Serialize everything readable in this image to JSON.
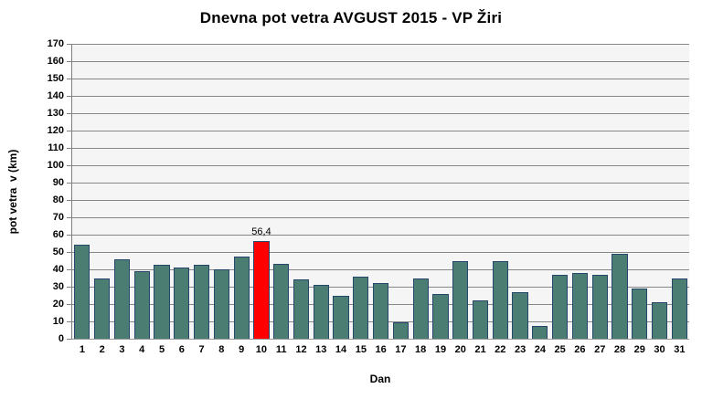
{
  "title": "Dnevna pot vetra AVGUST 2015 - VP Žiri",
  "chart_data": {
    "type": "bar",
    "title": "Dnevna pot vetra AVGUST 2015 - VP Žiri",
    "xlabel": "Dan",
    "ylabel": "pot vetra  v (km)",
    "ylim": [
      0,
      170
    ],
    "ytick_step": 10,
    "grid": true,
    "legend": false,
    "categories": [
      "1",
      "2",
      "3",
      "4",
      "5",
      "6",
      "7",
      "8",
      "9",
      "10",
      "11",
      "12",
      "13",
      "14",
      "15",
      "16",
      "17",
      "18",
      "19",
      "20",
      "21",
      "22",
      "23",
      "24",
      "25",
      "26",
      "27",
      "28",
      "29",
      "30",
      "31"
    ],
    "values": [
      54,
      35,
      46,
      39,
      42.5,
      41,
      42.5,
      40,
      47.5,
      56.4,
      43,
      34,
      31,
      25,
      36,
      32,
      9.5,
      35,
      26,
      44.5,
      22,
      44.5,
      27,
      7.5,
      37,
      38,
      37,
      49,
      29,
      21,
      35
    ],
    "highlight": {
      "category": "10",
      "index": 9,
      "data_label": "56,4"
    },
    "colors": {
      "bar_fill": "#4c7d73",
      "bar_border": "#24476b",
      "highlight_fill": "#ff0000",
      "plot_background": "#f5f5f5",
      "gridline": "#878787",
      "axis_line": "#808080",
      "text": "#000000"
    }
  }
}
